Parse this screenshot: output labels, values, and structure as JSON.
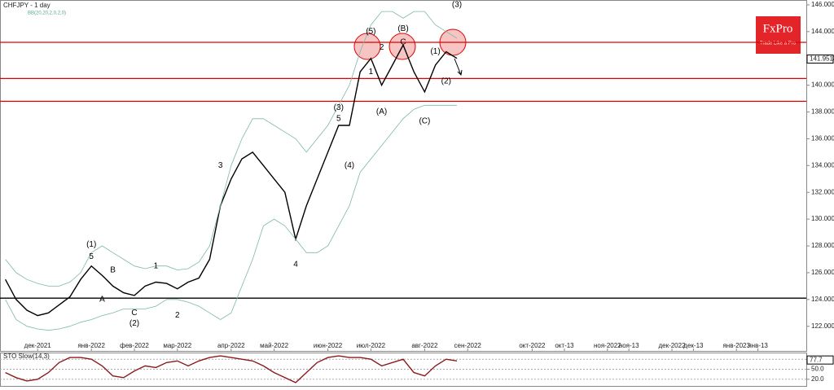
{
  "chart_data": [
    {
      "type": "line",
      "title": "CHFJPY - 1 day",
      "subtitle": "BB(20,20,2,0,2,0)",
      "brand": "FxPro",
      "tagline": "Trade Like a Pro",
      "categories": [
        null,
        null,
        null,
        "дек-2021",
        null,
        null,
        null,
        null,
        "янв-2022",
        null,
        null,
        null,
        "фев-2022",
        null,
        null,
        null,
        "мар-2022",
        null,
        null,
        null,
        null,
        "апр-2022",
        null,
        null,
        null,
        "май-2022",
        null,
        null,
        null,
        null,
        "июн-2022",
        null,
        null,
        null,
        "июл-2022",
        null,
        null,
        null,
        null,
        "авг-2022",
        null,
        null,
        null,
        "сен-2022",
        null,
        null,
        null,
        null,
        null,
        "окт-2022",
        null,
        null,
        "окт-13",
        null,
        null,
        null,
        "ноя-2022",
        null,
        "ноя-13",
        null,
        null,
        null,
        "дек-2022",
        null,
        "дек-13",
        null,
        null,
        null,
        "янв-2023",
        null,
        "янв-13",
        null,
        null,
        null,
        null
      ],
      "series": [
        {
          "name": "CHFJPY",
          "color": "#000000",
          "values": [
            125.5,
            124,
            123.2,
            122.8,
            123,
            123.6,
            124.2,
            125.5,
            126.5,
            125.8,
            125,
            124.5,
            124.3,
            125,
            125.3,
            125.2,
            124.8,
            125.3,
            125.6,
            127,
            131,
            133,
            134.5,
            135,
            134,
            133,
            132,
            128.5,
            131,
            133,
            135,
            137,
            137,
            141,
            142,
            140,
            141.5,
            143,
            141,
            139.5,
            141.5,
            142.5,
            142,
            null,
            null,
            null,
            null,
            null,
            null,
            null,
            null,
            null,
            null,
            null,
            null,
            null,
            null,
            null,
            null,
            null,
            null,
            null,
            null,
            null,
            null,
            null,
            null,
            null,
            null,
            null,
            null,
            null,
            null,
            null,
            null
          ]
        },
        {
          "name": "BB upper",
          "color": "#7fb8a8",
          "values": [
            127,
            126,
            125.5,
            125.2,
            125,
            125,
            125.3,
            126,
            127.5,
            128,
            127.5,
            127,
            126.5,
            126.3,
            126.5,
            126.5,
            126.2,
            126.3,
            126.8,
            128,
            131,
            134,
            136,
            137.5,
            137.5,
            137,
            136.5,
            136,
            135,
            136,
            137,
            138.5,
            140,
            142.5,
            144.5,
            145.5,
            145.5,
            145,
            145.5,
            145.5,
            144.5,
            144,
            143.5,
            null,
            null,
            null,
            null,
            null,
            null,
            null,
            null,
            null,
            null,
            null,
            null,
            null,
            null,
            null,
            null,
            null,
            null,
            null,
            null,
            null,
            null,
            null,
            null,
            null,
            null,
            null,
            null,
            null,
            null,
            null,
            null
          ]
        },
        {
          "name": "BB lower",
          "color": "#7fb8a8",
          "values": [
            124,
            122.5,
            122,
            121.8,
            121.7,
            121.8,
            122,
            122.3,
            122.5,
            122.8,
            123,
            123.3,
            123.3,
            123.3,
            123.5,
            124,
            124,
            123.8,
            123.5,
            123,
            122.5,
            123,
            125,
            127,
            129.5,
            130,
            129.5,
            128.5,
            127.5,
            127.5,
            128,
            129.5,
            131,
            133.5,
            134.5,
            135.5,
            136.5,
            137.5,
            138.2,
            138.5,
            138.5,
            138.5,
            138.5,
            null,
            null,
            null,
            null,
            null,
            null,
            null,
            null,
            null,
            null,
            null,
            null,
            null,
            null,
            null,
            null,
            null,
            null,
            null,
            null,
            null,
            null,
            null,
            null,
            null,
            null,
            null,
            null,
            null,
            null,
            null,
            null
          ]
        }
      ],
      "hlines": [
        {
          "value": 143.2,
          "color": "#e00000"
        },
        {
          "value": 140.5,
          "color": "#e00000"
        },
        {
          "value": 138.8,
          "color": "#e00000"
        },
        {
          "value": 124.1,
          "color": "#000000"
        }
      ],
      "last_price": {
        "value": 141.951,
        "label": "141.951"
      },
      "annotations": [
        {
          "text": "(1)",
          "x": 8,
          "y": 128.1
        },
        {
          "text": "5",
          "x": 8,
          "y": 127.2
        },
        {
          "text": "B",
          "x": 10,
          "y": 126.2
        },
        {
          "text": "A",
          "x": 9,
          "y": 124
        },
        {
          "text": "1",
          "x": 14,
          "y": 126.5
        },
        {
          "text": "C",
          "x": 12,
          "y": 123
        },
        {
          "text": "(2)",
          "x": 12,
          "y": 122.2
        },
        {
          "text": "2",
          "x": 16,
          "y": 122.8
        },
        {
          "text": "3",
          "x": 20,
          "y": 134
        },
        {
          "text": "4",
          "x": 27,
          "y": 126.6
        },
        {
          "text": "(3)",
          "x": 31,
          "y": 138.3
        },
        {
          "text": "5",
          "x": 31,
          "y": 137.5
        },
        {
          "text": "(4)",
          "x": 32,
          "y": 134
        },
        {
          "text": "(5)",
          "x": 34,
          "y": 144
        },
        {
          "text": "1",
          "x": 34,
          "y": 141
        },
        {
          "text": "2",
          "x": 35,
          "y": 142.8
        },
        {
          "text": "(A)",
          "x": 35,
          "y": 138
        },
        {
          "text": "(B)",
          "x": 37,
          "y": 144.2
        },
        {
          "text": "C",
          "x": 37,
          "y": 143.2
        },
        {
          "text": "(C)",
          "x": 39,
          "y": 137.3
        },
        {
          "text": "(1)",
          "x": 40,
          "y": 142.5
        },
        {
          "text": "(2)",
          "x": 41,
          "y": 140.3
        },
        {
          "text": "(3)",
          "x": 42,
          "y": 146
        }
      ],
      "ylim": [
        120.1,
        146.36
      ],
      "yticks": [
        {
          "value": 122,
          "label": "122.000"
        },
        {
          "value": 124,
          "label": "124.000"
        },
        {
          "value": 126,
          "label": "126.000"
        },
        {
          "value": 128,
          "label": "128.000"
        },
        {
          "value": 130,
          "label": "130.000"
        },
        {
          "value": 132,
          "label": "132.000"
        },
        {
          "value": 134,
          "label": "134.000"
        },
        {
          "value": 136,
          "label": "136.000"
        },
        {
          "value": 138,
          "label": "138.000"
        },
        {
          "value": 140,
          "label": "140.000"
        },
        {
          "value": 142,
          "label": "142.000"
        },
        {
          "value": 144,
          "label": "144.000"
        },
        {
          "value": 146,
          "label": "146.000"
        }
      ]
    },
    {
      "type": "line",
      "title": "STO Slow(14,3)",
      "series": [
        {
          "name": "STO",
          "color": "#8b1a1a",
          "values": [
            40,
            25,
            15,
            20,
            40,
            70,
            85,
            85,
            80,
            60,
            30,
            25,
            45,
            60,
            55,
            70,
            75,
            60,
            75,
            85,
            90,
            85,
            80,
            75,
            60,
            40,
            25,
            10,
            40,
            70,
            85,
            90,
            85,
            85,
            80,
            60,
            70,
            80,
            40,
            30,
            60,
            80,
            75
          ]
        }
      ],
      "last_value": {
        "value": 77.7,
        "label": "77.7"
      },
      "ylim": [
        0,
        100
      ],
      "yticks": [
        {
          "value": 20,
          "label": "20.0"
        },
        {
          "value": 50,
          "label": "50.0"
        },
        {
          "value": 80,
          "label": "80.0"
        }
      ]
    }
  ]
}
